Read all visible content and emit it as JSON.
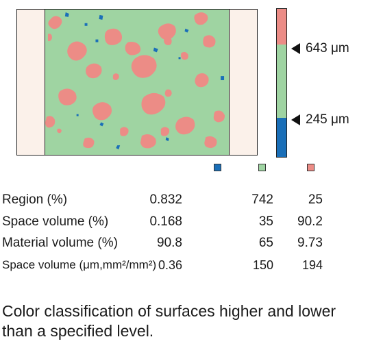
{
  "colors": {
    "blue": "#1a6fb8",
    "green": "#9fd4a2",
    "pink": "#ec8c86",
    "side": "#fbf1ea",
    "outline": "#222222"
  },
  "colorbar": {
    "upper_label": "643 μm",
    "lower_label": "245 μm"
  },
  "legend": [
    {
      "name": "blue-region",
      "color": "#1a6fb8"
    },
    {
      "name": "green-region",
      "color": "#9fd4a2"
    },
    {
      "name": "pink-region",
      "color": "#ec8c86"
    }
  ],
  "table": {
    "rows": [
      {
        "label": "Region (%)",
        "values": [
          "0.832",
          "742",
          "25"
        ]
      },
      {
        "label": "Space volume (%)",
        "values": [
          "0.168",
          "35",
          "90.2"
        ]
      },
      {
        "label": "Material volume (%)",
        "values": [
          "90.8",
          "65",
          "9.73"
        ]
      },
      {
        "label": "Space volume (μm,mm²/mm²)",
        "values": [
          "0.36",
          "150",
          "194"
        ]
      }
    ]
  },
  "caption": "Color classification of surfaces higher and lower than a specified level."
}
